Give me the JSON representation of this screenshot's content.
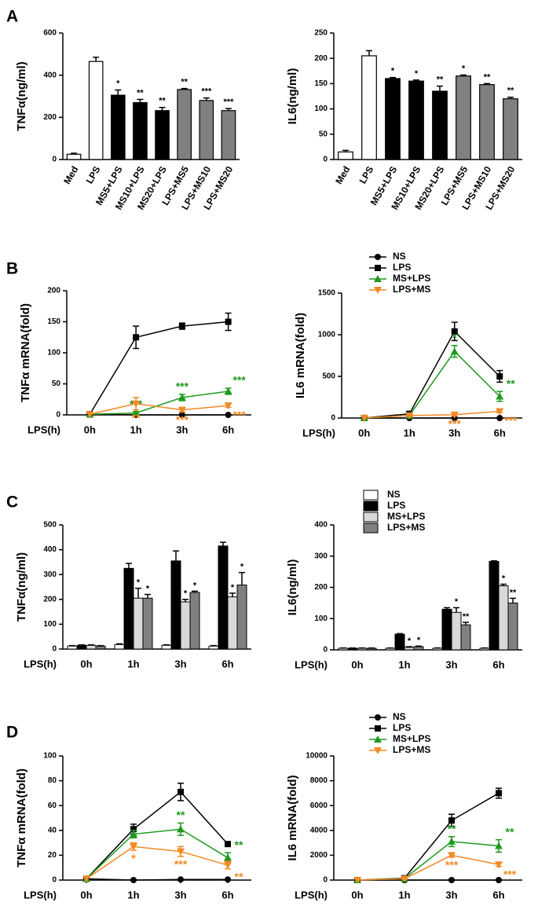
{
  "panel_labels": [
    "A",
    "B",
    "C",
    "D"
  ],
  "chart_data": [
    {
      "type": "bar",
      "ylabel": "TNFα(ng/ml)",
      "categories": [
        "Med",
        "LPS",
        "MS5+LPS",
        "MS10+LPS",
        "MS20+LPS",
        "LPS+MS5",
        "LPS+MS10",
        "LPS+MS20"
      ],
      "values": [
        25,
        465,
        305,
        270,
        232,
        332,
        280,
        232
      ],
      "errors": [
        5,
        20,
        25,
        15,
        15,
        5,
        12,
        10
      ],
      "annotations": [
        null,
        null,
        "*",
        "**",
        "**",
        "**",
        "***",
        "***"
      ],
      "colors": [
        "#ffffff",
        "#ffffff",
        "#000000",
        "#000000",
        "#000000",
        "#808080",
        "#808080",
        "#808080"
      ],
      "ylim": [
        0,
        600
      ],
      "yticks": [
        0,
        200,
        400,
        600
      ]
    },
    {
      "type": "bar",
      "ylabel": "IL6(ng/ml)",
      "categories": [
        "Med",
        "LPS",
        "MS5+LPS",
        "MS10+LPS",
        "MS20+LPS",
        "LPS+MS5",
        "LPS+MS10",
        "LPS+MS20"
      ],
      "values": [
        15,
        205,
        160,
        155,
        135,
        165,
        148,
        120
      ],
      "errors": [
        3,
        10,
        2,
        2,
        10,
        2,
        2,
        3
      ],
      "annotations": [
        null,
        null,
        "*",
        "*",
        "**",
        "*",
        "**",
        "**"
      ],
      "colors": [
        "#ffffff",
        "#ffffff",
        "#000000",
        "#000000",
        "#000000",
        "#808080",
        "#808080",
        "#808080"
      ],
      "ylim": [
        0,
        250
      ],
      "yticks": [
        0,
        50,
        100,
        150,
        200,
        250
      ]
    },
    {
      "type": "line",
      "ylabel": "TNFα mRNA(fold)",
      "xlabel": "LPS(h)",
      "categories": [
        "0h",
        "1h",
        "3h",
        "6h"
      ],
      "ylim": [
        0,
        200
      ],
      "yticks": [
        0,
        50,
        100,
        150,
        200
      ],
      "series": [
        {
          "name": "NS",
          "color": "#000000",
          "marker": "circle",
          "values": [
            1,
            0,
            0,
            0
          ],
          "errors": [
            0,
            0,
            0,
            0
          ],
          "annotations": [
            null,
            null,
            null,
            null
          ]
        },
        {
          "name": "LPS",
          "color": "#000000",
          "marker": "square",
          "values": [
            1,
            125,
            143,
            150
          ],
          "errors": [
            0,
            18,
            5,
            14
          ],
          "annotations": [
            null,
            null,
            null,
            null
          ]
        },
        {
          "name": "MS+LPS",
          "color": "#1f9a1f",
          "marker": "triangle-up",
          "values": [
            1,
            3,
            28,
            38
          ],
          "errors": [
            0,
            2,
            5,
            5
          ],
          "annotations": [
            null,
            "***",
            "***",
            "***"
          ]
        },
        {
          "name": "LPS+MS",
          "color": "#f08a24",
          "marker": "triangle-down",
          "values": [
            1,
            18,
            8,
            15
          ],
          "errors": [
            0,
            10,
            3,
            3
          ],
          "annotations": [
            null,
            "**",
            "***",
            "***"
          ]
        }
      ]
    },
    {
      "type": "line",
      "ylabel": "IL6 mRNA(fold)",
      "xlabel": "LPS(h)",
      "categories": [
        "0h",
        "1h",
        "3h",
        "6h"
      ],
      "legend": true,
      "ylim": [
        0,
        1500
      ],
      "yticks": [
        0,
        500,
        1000,
        1500
      ],
      "series": [
        {
          "name": "NS",
          "color": "#000000",
          "marker": "circle",
          "values": [
            0,
            0,
            0,
            0
          ],
          "errors": [
            0,
            0,
            0,
            0
          ],
          "annotations": [
            null,
            null,
            null,
            null
          ]
        },
        {
          "name": "LPS",
          "color": "#000000",
          "marker": "square",
          "values": [
            1,
            50,
            1040,
            500
          ],
          "errors": [
            0,
            30,
            110,
            70
          ],
          "annotations": [
            null,
            null,
            null,
            null
          ]
        },
        {
          "name": "MS+LPS",
          "color": "#1f9a1f",
          "marker": "triangle-up",
          "values": [
            1,
            30,
            800,
            260
          ],
          "errors": [
            0,
            15,
            70,
            60
          ],
          "annotations": [
            null,
            null,
            "*",
            "**"
          ]
        },
        {
          "name": "LPS+MS",
          "color": "#f08a24",
          "marker": "triangle-down",
          "values": [
            1,
            30,
            40,
            80
          ],
          "errors": [
            0,
            10,
            15,
            15
          ],
          "annotations": [
            null,
            null,
            "***",
            "***"
          ]
        }
      ]
    },
    {
      "type": "bar",
      "ylabel": "TNFα(ng/ml)",
      "xlabel": "LPS(h)",
      "categories": [
        "0h",
        "1h",
        "3h",
        "6h"
      ],
      "ylim": [
        0,
        500
      ],
      "yticks": [
        0,
        100,
        200,
        300,
        400,
        500
      ],
      "series": [
        {
          "name": "NS",
          "color": "#ffffff",
          "values": [
            12,
            18,
            15,
            12
          ],
          "errors": [
            2,
            3,
            2,
            2
          ],
          "annotations": [
            null,
            null,
            null,
            null
          ]
        },
        {
          "name": "LPS",
          "color": "#000000",
          "values": [
            15,
            325,
            355,
            415
          ],
          "errors": [
            2,
            20,
            40,
            15
          ],
          "annotations": [
            null,
            null,
            null,
            null
          ]
        },
        {
          "name": "MS+LPS",
          "color": "#d9d9d9",
          "values": [
            15,
            205,
            190,
            210
          ],
          "errors": [
            2,
            40,
            10,
            15
          ],
          "annotations": [
            null,
            "*",
            "*",
            "*"
          ]
        },
        {
          "name": "LPS+MS",
          "color": "#808080",
          "values": [
            12,
            205,
            228,
            258
          ],
          "errors": [
            2,
            15,
            5,
            50
          ],
          "annotations": [
            null,
            "*",
            "*",
            "*"
          ]
        }
      ]
    },
    {
      "type": "bar",
      "ylabel": "IL6(ng/ml)",
      "xlabel": "LPS(h)",
      "categories": [
        "0h",
        "1h",
        "3h",
        "6h"
      ],
      "legend": true,
      "ylim": [
        0,
        400
      ],
      "yticks": [
        0,
        100,
        200,
        300,
        400
      ],
      "series": [
        {
          "name": "NS",
          "color": "#ffffff",
          "values": [
            5,
            5,
            5,
            5
          ],
          "errors": [
            1,
            1,
            1,
            1
          ],
          "annotations": [
            null,
            null,
            null,
            null
          ]
        },
        {
          "name": "LPS",
          "color": "#000000",
          "values": [
            5,
            50,
            130,
            283
          ],
          "errors": [
            1,
            2,
            5,
            2
          ],
          "annotations": [
            null,
            null,
            null,
            null
          ]
        },
        {
          "name": "MS+LPS",
          "color": "#d9d9d9",
          "values": [
            5,
            8,
            120,
            205
          ],
          "errors": [
            1,
            2,
            15,
            5
          ],
          "annotations": [
            null,
            "*",
            "*",
            "*"
          ]
        },
        {
          "name": "LPS+MS",
          "color": "#808080",
          "values": [
            5,
            10,
            80,
            150
          ],
          "errors": [
            1,
            2,
            8,
            15
          ],
          "annotations": [
            null,
            "*",
            "**",
            "**"
          ]
        }
      ]
    },
    {
      "type": "line",
      "ylabel": "TNFα mRNA(fold)",
      "xlabel": "LPS(h)",
      "categories": [
        "0h",
        "1h",
        "3h",
        "6h"
      ],
      "ylim": [
        0,
        100
      ],
      "yticks": [
        0,
        20,
        40,
        60,
        80,
        100
      ],
      "series": [
        {
          "name": "NS",
          "color": "#000000",
          "marker": "circle",
          "values": [
            1,
            0,
            0.5,
            0.5
          ],
          "errors": [
            0,
            0,
            0,
            0
          ],
          "annotations": [
            null,
            null,
            null,
            null
          ]
        },
        {
          "name": "LPS",
          "color": "#000000",
          "marker": "square",
          "values": [
            1,
            41,
            71,
            29
          ],
          "errors": [
            0,
            4,
            7,
            1
          ],
          "annotations": [
            null,
            null,
            null,
            null
          ]
        },
        {
          "name": "MS+LPS",
          "color": "#1f9a1f",
          "marker": "triangle-up",
          "values": [
            1,
            37,
            41,
            18
          ],
          "errors": [
            0,
            3,
            5,
            4
          ],
          "annotations": [
            null,
            null,
            "**",
            "**"
          ]
        },
        {
          "name": "LPS+MS",
          "color": "#f08a24",
          "marker": "triangle-down",
          "values": [
            1,
            27,
            23,
            12
          ],
          "errors": [
            0,
            3,
            4,
            3
          ],
          "annotations": [
            null,
            "*",
            "***",
            "**"
          ]
        }
      ]
    },
    {
      "type": "line",
      "ylabel": "IL6 mRNA(fold)",
      "xlabel": "LPS(h)",
      "categories": [
        "0h",
        "1h",
        "3h",
        "6h"
      ],
      "legend": true,
      "ylim": [
        0,
        10000
      ],
      "yticks": [
        0,
        2000,
        4000,
        6000,
        8000,
        10000
      ],
      "series": [
        {
          "name": "NS",
          "color": "#000000",
          "marker": "circle",
          "values": [
            0,
            0,
            0,
            0
          ],
          "errors": [
            0,
            0,
            0,
            0
          ],
          "annotations": [
            null,
            null,
            null,
            null
          ]
        },
        {
          "name": "LPS",
          "color": "#000000",
          "marker": "square",
          "values": [
            1,
            150,
            4800,
            7000
          ],
          "errors": [
            0,
            50,
            500,
            400
          ],
          "annotations": [
            null,
            null,
            null,
            null
          ]
        },
        {
          "name": "MS+LPS",
          "color": "#1f9a1f",
          "marker": "triangle-up",
          "values": [
            1,
            120,
            3100,
            2750
          ],
          "errors": [
            0,
            40,
            400,
            500
          ],
          "annotations": [
            null,
            null,
            "**",
            "**"
          ]
        },
        {
          "name": "LPS+MS",
          "color": "#f08a24",
          "marker": "triangle-down",
          "values": [
            1,
            100,
            2000,
            1250
          ],
          "errors": [
            0,
            30,
            150,
            150
          ],
          "annotations": [
            null,
            null,
            "***",
            "***"
          ]
        }
      ]
    }
  ]
}
